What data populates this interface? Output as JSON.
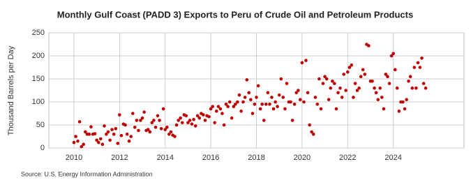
{
  "chart_data": {
    "type": "scatter",
    "title": "Monthly Gulf Coast (PADD 3) Exports to Peru of Crude Oil and Petroleum Products",
    "y_label": "Thousand Barrels per Day",
    "source": "Source: U.S. Energy Information Administration",
    "color": "#c00000",
    "grid": true,
    "xlim": [
      2008.9,
      2027.1
    ],
    "ylim": [
      0,
      250
    ],
    "xticks": [
      2010,
      2012,
      2014,
      2016,
      2018,
      2020,
      2022,
      2024
    ],
    "yticks": [
      0,
      50,
      100,
      150,
      200,
      250
    ],
    "x": [
      2010,
      2010.08,
      2010.17,
      2010.25,
      2010.33,
      2010.42,
      2010.5,
      2010.58,
      2010.67,
      2010.75,
      2010.83,
      2010.92,
      2011,
      2011.08,
      2011.17,
      2011.25,
      2011.33,
      2011.42,
      2011.5,
      2011.58,
      2011.67,
      2011.75,
      2011.83,
      2011.92,
      2012,
      2012.08,
      2012.17,
      2012.25,
      2012.33,
      2012.42,
      2012.5,
      2012.58,
      2012.67,
      2012.75,
      2012.83,
      2012.92,
      2013,
      2013.08,
      2013.17,
      2013.25,
      2013.33,
      2013.42,
      2013.5,
      2013.58,
      2013.67,
      2013.75,
      2013.83,
      2013.92,
      2014,
      2014.08,
      2014.17,
      2014.25,
      2014.33,
      2014.42,
      2014.5,
      2014.58,
      2014.67,
      2014.75,
      2014.83,
      2014.92,
      2015,
      2015.08,
      2015.17,
      2015.25,
      2015.33,
      2015.42,
      2015.5,
      2015.58,
      2015.67,
      2015.75,
      2015.83,
      2015.92,
      2016,
      2016.08,
      2016.17,
      2016.25,
      2016.33,
      2016.42,
      2016.5,
      2016.58,
      2016.67,
      2016.75,
      2016.83,
      2016.92,
      2017,
      2017.08,
      2017.17,
      2017.25,
      2017.33,
      2017.42,
      2017.5,
      2017.58,
      2017.67,
      2017.75,
      2017.83,
      2017.92,
      2018,
      2018.08,
      2018.17,
      2018.25,
      2018.33,
      2018.42,
      2018.5,
      2018.58,
      2018.67,
      2018.75,
      2018.83,
      2018.92,
      2019,
      2019.08,
      2019.17,
      2019.25,
      2019.33,
      2019.42,
      2019.5,
      2019.58,
      2019.67,
      2019.75,
      2019.83,
      2019.92,
      2020,
      2020.08,
      2020.17,
      2020.25,
      2020.33,
      2020.42,
      2020.5,
      2020.58,
      2020.67,
      2020.75,
      2020.83,
      2020.92,
      2021,
      2021.08,
      2021.17,
      2021.25,
      2021.33,
      2021.42,
      2021.5,
      2021.58,
      2021.67,
      2021.75,
      2021.83,
      2021.92,
      2022,
      2022.08,
      2022.17,
      2022.25,
      2022.33,
      2022.42,
      2022.5,
      2022.58,
      2022.67,
      2022.75,
      2022.83,
      2022.92,
      2023,
      2023.08,
      2023.17,
      2023.25,
      2023.33,
      2023.42,
      2023.5,
      2023.58,
      2023.67,
      2023.75,
      2023.83,
      2023.92,
      2024,
      2024.08,
      2024.17,
      2024.25,
      2024.33,
      2024.42,
      2024.5,
      2024.58,
      2024.67,
      2024.75,
      2024.83,
      2024.92,
      2025,
      2025.08,
      2025.17,
      2025.25,
      2025.33,
      2025.42
    ],
    "values": [
      12,
      25,
      15,
      57,
      3,
      8,
      35,
      30,
      30,
      46,
      30,
      31,
      17,
      12,
      20,
      8,
      48,
      30,
      35,
      17,
      40,
      30,
      42,
      10,
      72,
      27,
      52,
      50,
      30,
      15,
      25,
      75,
      45,
      60,
      38,
      60,
      65,
      78,
      38,
      40,
      35,
      55,
      60,
      45,
      70,
      60,
      42,
      85,
      40,
      45,
      30,
      35,
      28,
      25,
      50,
      60,
      65,
      55,
      72,
      70,
      55,
      60,
      52,
      62,
      48,
      70,
      65,
      75,
      72,
      60,
      70,
      68,
      85,
      90,
      55,
      80,
      90,
      85,
      75,
      50,
      95,
      90,
      100,
      65,
      90,
      95,
      100,
      115,
      80,
      100,
      110,
      148,
      120,
      105,
      75,
      95,
      110,
      135,
      85,
      95,
      60,
      95,
      120,
      95,
      110,
      85,
      100,
      90,
      115,
      150,
      110,
      85,
      140,
      100,
      100,
      60,
      95,
      120,
      125,
      105,
      185,
      100,
      190,
      120,
      50,
      35,
      30,
      110,
      95,
      150,
      85,
      140,
      155,
      150,
      105,
      130,
      145,
      140,
      85,
      120,
      130,
      110,
      160,
      125,
      165,
      175,
      180,
      110,
      140,
      125,
      130,
      155,
      170,
      160,
      225,
      222,
      145,
      145,
      130,
      120,
      105,
      130,
      110,
      85,
      160,
      155,
      140,
      200,
      205,
      170,
      130,
      80,
      100,
      100,
      85,
      105,
      145,
      155,
      130,
      175,
      130,
      185,
      175,
      195,
      140,
      130
    ]
  }
}
